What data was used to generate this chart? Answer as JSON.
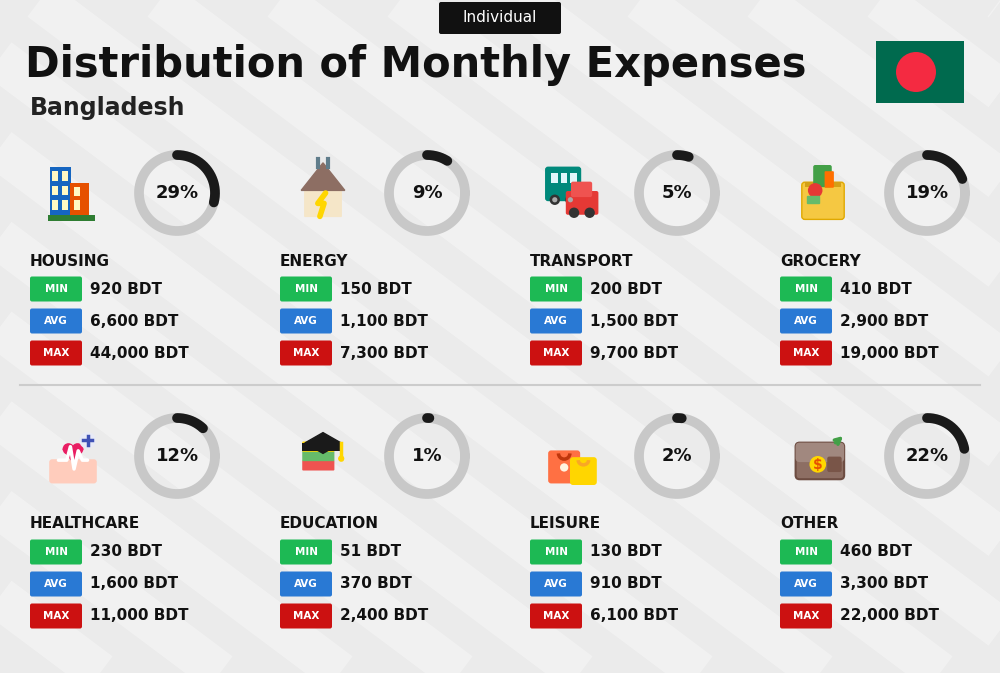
{
  "title": "Distribution of Monthly Expenses",
  "subtitle": "Bangladesh",
  "tag": "Individual",
  "bg_color": "#ebebeb",
  "categories": [
    {
      "name": "HOUSING",
      "pct": 29,
      "min": "920 BDT",
      "avg": "6,600 BDT",
      "max": "44,000 BDT",
      "row": 0,
      "col": 0
    },
    {
      "name": "ENERGY",
      "pct": 9,
      "min": "150 BDT",
      "avg": "1,100 BDT",
      "max": "7,300 BDT",
      "row": 0,
      "col": 1
    },
    {
      "name": "TRANSPORT",
      "pct": 5,
      "min": "200 BDT",
      "avg": "1,500 BDT",
      "max": "9,700 BDT",
      "row": 0,
      "col": 2
    },
    {
      "name": "GROCERY",
      "pct": 19,
      "min": "410 BDT",
      "avg": "2,900 BDT",
      "max": "19,000 BDT",
      "row": 0,
      "col": 3
    },
    {
      "name": "HEALTHCARE",
      "pct": 12,
      "min": "230 BDT",
      "avg": "1,600 BDT",
      "max": "11,000 BDT",
      "row": 1,
      "col": 0
    },
    {
      "name": "EDUCATION",
      "pct": 1,
      "min": "51 BDT",
      "avg": "370 BDT",
      "max": "2,400 BDT",
      "row": 1,
      "col": 1
    },
    {
      "name": "LEISURE",
      "pct": 2,
      "min": "130 BDT",
      "avg": "910 BDT",
      "max": "6,100 BDT",
      "row": 1,
      "col": 2
    },
    {
      "name": "OTHER",
      "pct": 22,
      "min": "460 BDT",
      "avg": "3,300 BDT",
      "max": "22,000 BDT",
      "row": 1,
      "col": 3
    }
  ],
  "min_color": "#1db954",
  "avg_color": "#2979d4",
  "max_color": "#cc1111",
  "donut_dark": "#1a1a1a",
  "donut_light": "#c8c8c8",
  "flag_green": "#006a4e",
  "flag_red": "#f42a41",
  "stripe_color": "#ffffff",
  "divider_color": "#cccccc",
  "tag_bg": "#111111",
  "title_color": "#111111",
  "subtitle_color": "#222222",
  "label_color": "#111111",
  "value_color": "#111111"
}
